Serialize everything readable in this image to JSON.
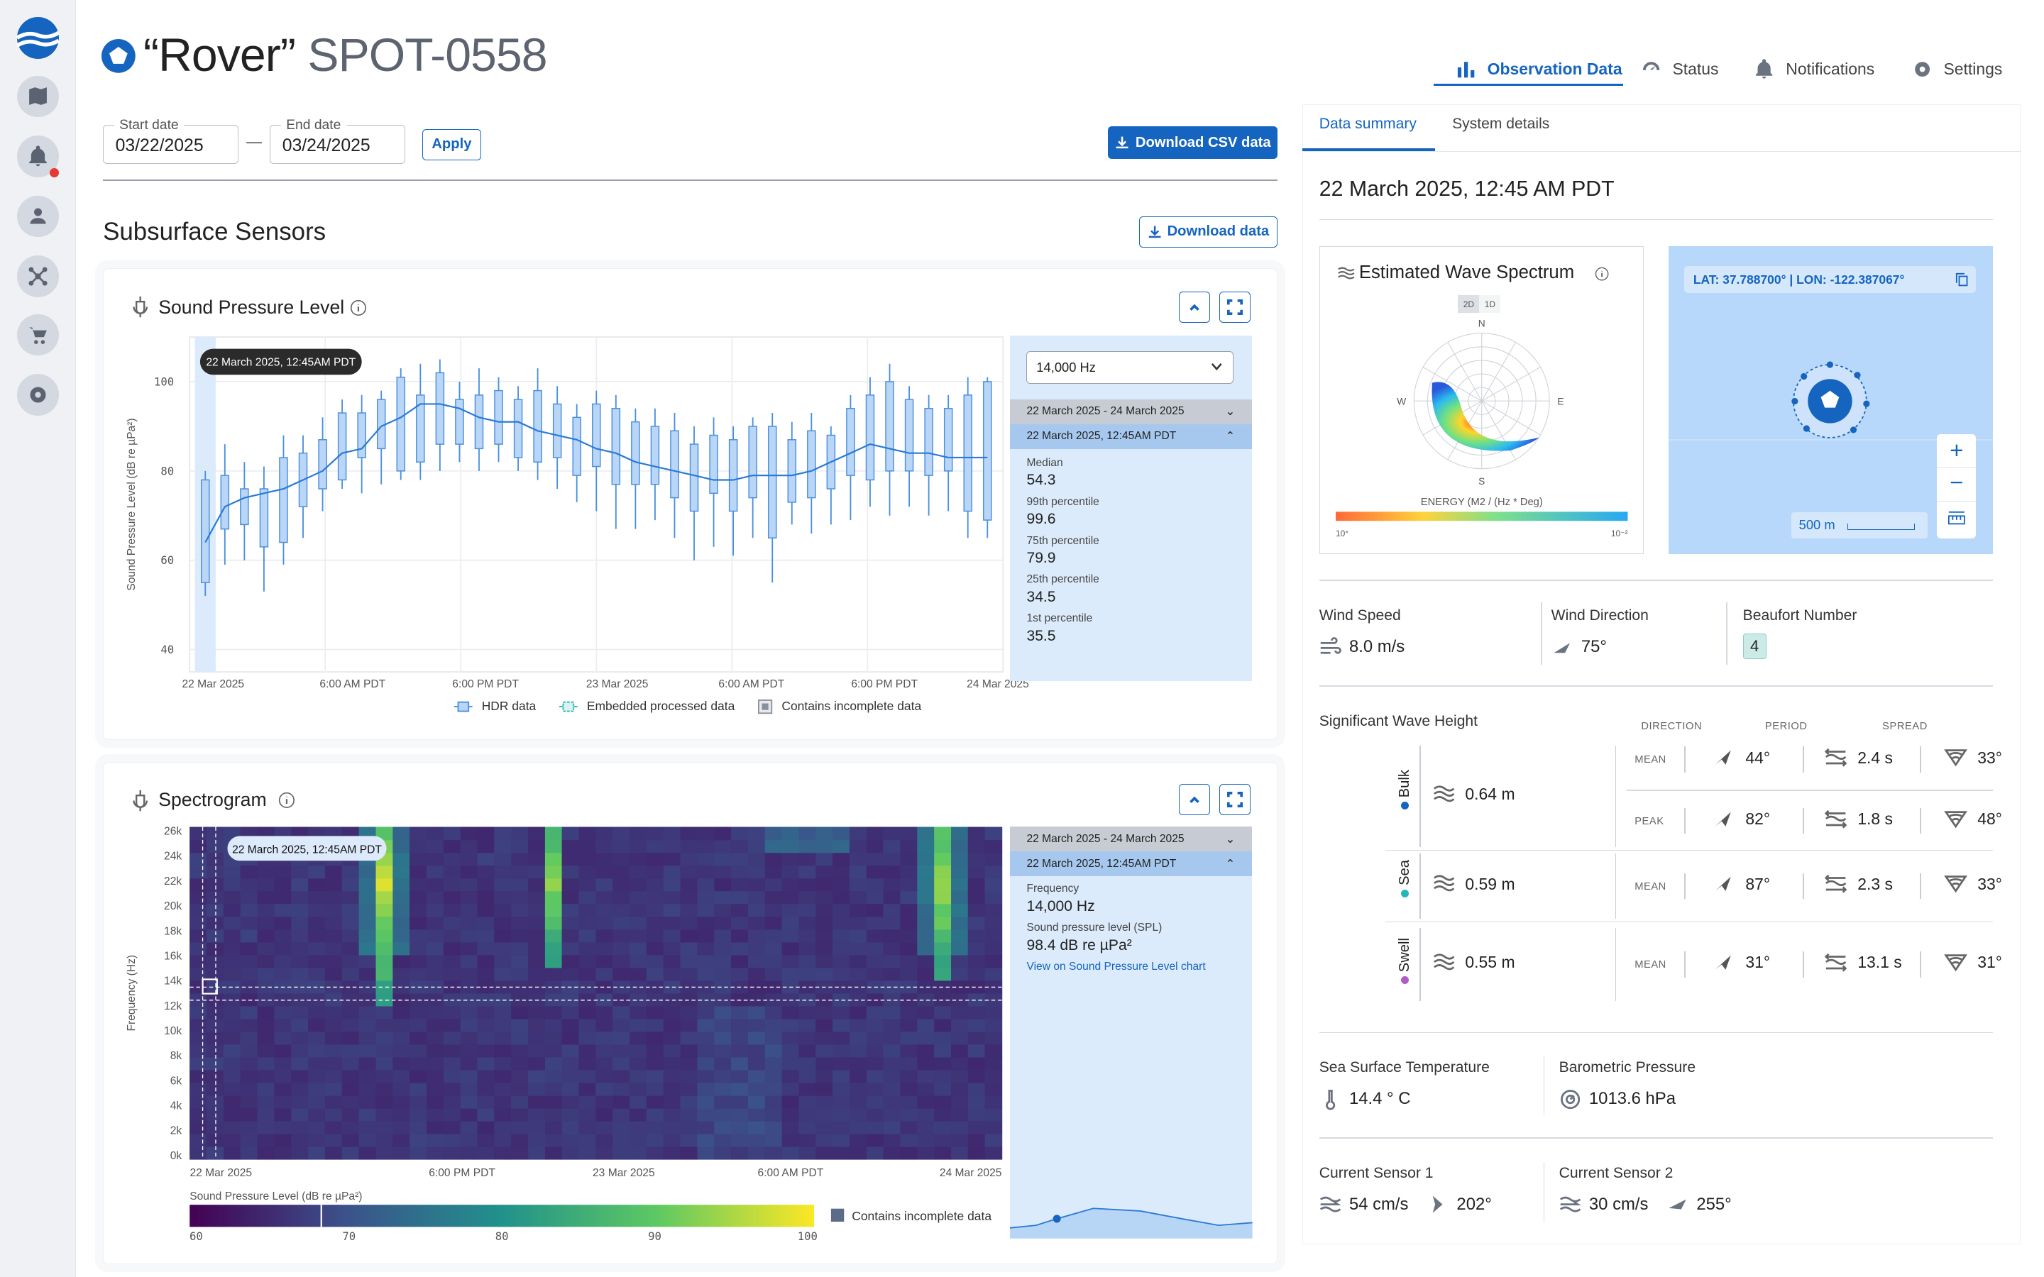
{
  "device": {
    "name": "“Rover”",
    "id": "SPOT-0558"
  },
  "nav_tabs": [
    {
      "label": "Observation Data",
      "icon": "bar-chart-icon"
    },
    {
      "label": "Status",
      "icon": "gauge-icon"
    },
    {
      "label": "Notifications",
      "icon": "bell-icon"
    },
    {
      "label": "Settings",
      "icon": "gear-icon"
    }
  ],
  "filters": {
    "start_label": "Start date",
    "start_value": "03/22/2025",
    "end_label": "End date",
    "end_value": "03/24/2025",
    "apply_label": "Apply",
    "download_csv_label": "Download CSV data",
    "separator": "—"
  },
  "subsurface": {
    "title": "Subsurface Sensors",
    "download_label": "Download data"
  },
  "spl": {
    "title": "Sound Pressure Level",
    "tooltip": "22 March 2025, 12:45AM PDT",
    "frequency_select": "14,000 Hz",
    "range_label": "22 March 2025 - 24 March 2025",
    "point_label": "22 March 2025, 12:45AM PDT",
    "stats": [
      {
        "label": "Median",
        "value": "54.3"
      },
      {
        "label": "99th percentile",
        "value": "99.6"
      },
      {
        "label": "75th percentile",
        "value": "79.9"
      },
      {
        "label": "25th percentile",
        "value": "34.5"
      },
      {
        "label": "1st percentile",
        "value": "35.5"
      }
    ],
    "legend": [
      "HDR data",
      "Embedded processed data",
      "Contains incomplete data"
    ]
  },
  "chart_data": [
    {
      "type": "box",
      "title": "Sound Pressure Level",
      "ylabel": "Sound Pressure Level (dB re µPa²)",
      "ylim": [
        35,
        110
      ],
      "yticks": [
        "100",
        "80",
        "60",
        "40"
      ],
      "ytick_values": [
        100,
        80,
        60,
        40
      ],
      "xticks": [
        "22 Mar 2025",
        "6:00 AM PDT",
        "6:00 PM PDT",
        "23 Mar 2025",
        "6:00 AM PDT",
        "6:00 PM PDT",
        "24 Mar 2025"
      ],
      "boxes": [
        {
          "min": 52,
          "q1": 55,
          "q3": 78,
          "max": 80
        },
        {
          "min": 59,
          "q1": 67,
          "q3": 79,
          "max": 86
        },
        {
          "min": 60,
          "q1": 68,
          "q3": 76,
          "max": 82
        },
        {
          "min": 53,
          "q1": 63,
          "q3": 76,
          "max": 81
        },
        {
          "min": 59,
          "q1": 64,
          "q3": 83,
          "max": 88
        },
        {
          "min": 65,
          "q1": 72,
          "q3": 84,
          "max": 88
        },
        {
          "min": 71,
          "q1": 76,
          "q3": 87,
          "max": 92
        },
        {
          "min": 76,
          "q1": 78,
          "q3": 93,
          "max": 96
        },
        {
          "min": 75,
          "q1": 83,
          "q3": 93,
          "max": 97
        },
        {
          "min": 77,
          "q1": 85,
          "q3": 96,
          "max": 98
        },
        {
          "min": 78,
          "q1": 80,
          "q3": 101,
          "max": 103
        },
        {
          "min": 78,
          "q1": 82,
          "q3": 97,
          "max": 104
        },
        {
          "min": 80,
          "q1": 86,
          "q3": 102,
          "max": 105
        },
        {
          "min": 82,
          "q1": 86,
          "q3": 96,
          "max": 100
        },
        {
          "min": 80,
          "q1": 85,
          "q3": 97,
          "max": 103
        },
        {
          "min": 82,
          "q1": 86,
          "q3": 98,
          "max": 101
        },
        {
          "min": 80,
          "q1": 83,
          "q3": 96,
          "max": 99
        },
        {
          "min": 78,
          "q1": 82,
          "q3": 98,
          "max": 103
        },
        {
          "min": 76,
          "q1": 83,
          "q3": 95,
          "max": 99
        },
        {
          "min": 73,
          "q1": 79,
          "q3": 92,
          "max": 95
        },
        {
          "min": 71,
          "q1": 81,
          "q3": 95,
          "max": 98
        },
        {
          "min": 67,
          "q1": 77,
          "q3": 94,
          "max": 97
        },
        {
          "min": 67,
          "q1": 77,
          "q3": 91,
          "max": 94
        },
        {
          "min": 69,
          "q1": 77,
          "q3": 90,
          "max": 94
        },
        {
          "min": 65,
          "q1": 74,
          "q3": 89,
          "max": 93
        },
        {
          "min": 60,
          "q1": 71,
          "q3": 86,
          "max": 90
        },
        {
          "min": 63,
          "q1": 75,
          "q3": 88,
          "max": 92
        },
        {
          "min": 61,
          "q1": 71,
          "q3": 87,
          "max": 90
        },
        {
          "min": 65,
          "q1": 74,
          "q3": 90,
          "max": 92
        },
        {
          "min": 55,
          "q1": 65,
          "q3": 90,
          "max": 93
        },
        {
          "min": 68,
          "q1": 73,
          "q3": 87,
          "max": 91
        },
        {
          "min": 66,
          "q1": 74,
          "q3": 89,
          "max": 93
        },
        {
          "min": 68,
          "q1": 76,
          "q3": 88,
          "max": 90
        },
        {
          "min": 69,
          "q1": 79,
          "q3": 94,
          "max": 97
        },
        {
          "min": 72,
          "q1": 78,
          "q3": 97,
          "max": 101
        },
        {
          "min": 70,
          "q1": 80,
          "q3": 100,
          "max": 104
        },
        {
          "min": 72,
          "q1": 80,
          "q3": 96,
          "max": 99
        },
        {
          "min": 70,
          "q1": 79,
          "q3": 94,
          "max": 97
        },
        {
          "min": 71,
          "q1": 80,
          "q3": 94,
          "max": 97
        },
        {
          "min": 65,
          "q1": 71,
          "q3": 97,
          "max": 101
        },
        {
          "min": 65,
          "q1": 69,
          "q3": 100,
          "max": 101
        }
      ],
      "median_line": [
        64,
        72,
        74,
        75,
        76,
        78,
        80,
        84,
        85,
        90,
        92,
        95,
        95,
        94,
        92,
        91,
        91,
        89,
        88,
        87,
        85,
        84,
        82,
        81,
        80,
        79,
        78,
        78,
        79,
        79,
        79,
        80,
        82,
        84,
        86,
        85,
        84,
        84,
        83,
        83,
        83
      ]
    },
    {
      "type": "heatmap",
      "title": "Spectrogram",
      "ylabel": "Frequency (Hz)",
      "yticks": [
        "26k",
        "24k",
        "22k",
        "20k",
        "18k",
        "16k",
        "14k",
        "12k",
        "10k",
        "8k",
        "6k",
        "4k",
        "2k",
        "0k"
      ],
      "xticks": [
        "22 Mar 2025",
        "6:00 PM PDT",
        "23 Mar 2025",
        "6:00 AM PDT",
        "24 Mar 2025"
      ],
      "colorbar_label": "Sound Pressure Level (dB re µPa²)",
      "colorbar_ticks": [
        "60",
        "70",
        "80",
        "90",
        "100"
      ],
      "colorbar_range": [
        60,
        100
      ]
    },
    {
      "type": "polar-heatmap",
      "title": "Estimated Wave Spectrum",
      "directions": [
        "N",
        "E",
        "S",
        "W"
      ],
      "colorbar_label": "ENERGY (M2 / (Hz * Deg)",
      "colorbar_ticks": [
        "10°",
        "10⁻²"
      ]
    }
  ],
  "spectrogram": {
    "title": "Spectrogram",
    "tooltip": "22 March 2025, 12:45AM PDT",
    "range_label": "22 March 2025 - 24 March 2025",
    "point_label": "22 March 2025, 12:45AM PDT",
    "freq_label": "Frequency",
    "freq_value": "14,000 Hz",
    "spl_label": "Sound pressure level (SPL)",
    "spl_value": "98.4 dB re µPa²",
    "link": "View on Sound Pressure Level chart",
    "legend_incomplete": "Contains incomplete data"
  },
  "right": {
    "tabs": [
      "Data summary",
      "System details"
    ],
    "timestamp": "22 March 2025, 12:45 AM PDT",
    "wave_spectrum_title": "Estimated Wave Spectrum",
    "spectrum_toggle": [
      "2D",
      "1D"
    ],
    "map": {
      "coords": "LAT: 37.788700° | LON: -122.387067°",
      "scale": "500 m"
    },
    "wind": {
      "speed_label": "Wind Speed",
      "speed_value": "8.0 m/s",
      "dir_label": "Wind Direction",
      "dir_value": "75°",
      "beaufort_label": "Beaufort Number",
      "beaufort_value": "4"
    },
    "waves": {
      "title": "Significant Wave Height",
      "col_headers": [
        "DIRECTION",
        "PERIOD",
        "SPREAD"
      ],
      "rows": [
        {
          "name": "Bulk",
          "color": "#1565c0",
          "height": "0.64 m",
          "sub": [
            {
              "kind": "MEAN",
              "dir": "44°",
              "period": "2.4 s",
              "spread": "33°"
            },
            {
              "kind": "PEAK",
              "dir": "82°",
              "period": "1.8 s",
              "spread": "48°"
            }
          ]
        },
        {
          "name": "Sea",
          "color": "#26b5b8",
          "height": "0.59 m",
          "sub": [
            {
              "kind": "MEAN",
              "dir": "87°",
              "period": "2.3 s",
              "spread": "33°"
            }
          ]
        },
        {
          "name": "Swell",
          "color": "#b05cc8",
          "height": "0.55 m",
          "sub": [
            {
              "kind": "MEAN",
              "dir": "31°",
              "period": "13.1 s",
              "spread": "31°"
            }
          ]
        }
      ]
    },
    "sst_label": "Sea Surface Temperature",
    "sst_value": "14.4 ° C",
    "baro_label": "Barometric Pressure",
    "baro_value": "1013.6 hPa",
    "current1": {
      "label": "Current Sensor 1",
      "speed": "54 cm/s",
      "dir": "202°"
    },
    "current2": {
      "label": "Current Sensor 2",
      "speed": "30 cm/s",
      "dir": "255°"
    }
  }
}
